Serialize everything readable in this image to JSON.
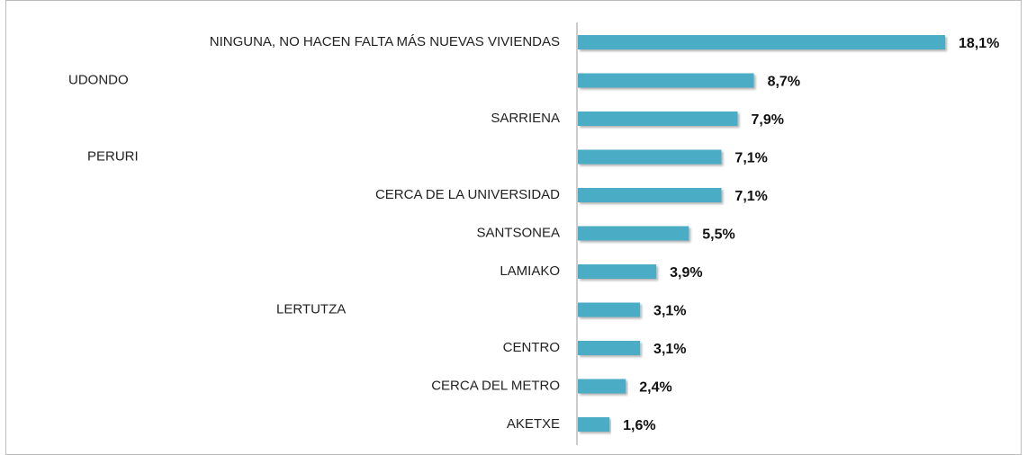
{
  "chart_data": {
    "type": "bar",
    "orientation": "horizontal",
    "categories": [
      "NINGUNA, NO HACEN FALTA MÁS NUEVAS VIVIENDAS",
      "UDONDO",
      "SARRIENA",
      "PERURI",
      "CERCA DE LA UNIVERSIDAD",
      "SANTSONEA",
      "LAMIAKO",
      "LERTUTZA",
      "CENTRO",
      "CERCA DEL METRO",
      "AKETXE"
    ],
    "values": [
      18.1,
      8.7,
      7.9,
      7.1,
      7.1,
      5.5,
      3.9,
      3.1,
      3.1,
      2.4,
      1.6
    ],
    "value_labels": [
      "18,1%",
      "8,7%",
      "7,9%",
      "7,1%",
      "7,1%",
      "5,5%",
      "3,9%",
      "3,1%",
      "3,1%",
      "2,4%",
      "1,6%"
    ],
    "color": "#4bacc6"
  }
}
